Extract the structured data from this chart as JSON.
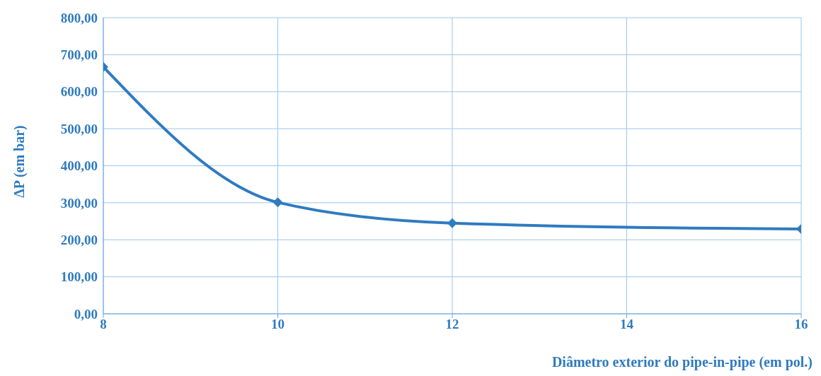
{
  "chart_data": {
    "type": "line",
    "xlabel": "Diâmetro exterior do pipe-in-pipe (em pol.)",
    "ylabel": "ΔP (em bar)",
    "x": [
      8,
      10,
      12,
      16
    ],
    "series": [
      {
        "color": "#2f7bc0",
        "values": [
          667,
          301,
          245,
          229
        ]
      }
    ],
    "xlim": [
      8,
      16
    ],
    "xticks": [
      8,
      10,
      12,
      14,
      16
    ],
    "ylim": [
      0,
      800
    ],
    "yticks": [
      {
        "value": 0,
        "label": "0,00"
      },
      {
        "value": 100,
        "label": "100,00"
      },
      {
        "value": 200,
        "label": "200,00"
      },
      {
        "value": 300,
        "label": "300,00"
      },
      {
        "value": 400,
        "label": "400,00"
      },
      {
        "value": 500,
        "label": "500,00"
      },
      {
        "value": 600,
        "label": "600,00"
      },
      {
        "value": 700,
        "label": "700,00"
      },
      {
        "value": 800,
        "label": "800,00"
      }
    ],
    "grid": true,
    "marker": "diamond",
    "line_style": "solid"
  }
}
